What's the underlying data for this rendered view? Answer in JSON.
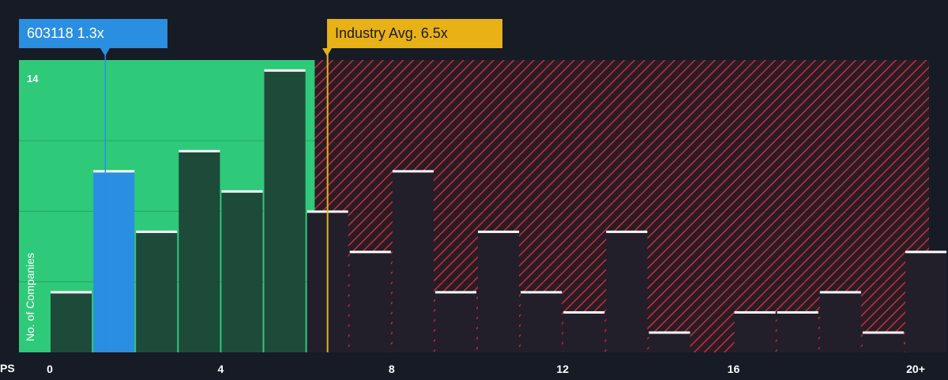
{
  "chart_data": {
    "type": "bar",
    "xlabel": "PS",
    "ylabel": "No. of Companies",
    "x_ticks": [
      "0",
      "4",
      "8",
      "12",
      "16",
      "20+"
    ],
    "y_ticks": [
      "14"
    ],
    "ylim": [
      0,
      14.5
    ],
    "xlim": [
      0,
      20.3
    ],
    "bin_width": 1,
    "bins_start": [
      0,
      1,
      2,
      3,
      4,
      5,
      6,
      7,
      8,
      9,
      10,
      11,
      12,
      13,
      14,
      15,
      16,
      17,
      18,
      19,
      20
    ],
    "values": [
      3,
      9,
      6,
      10,
      8,
      14,
      7,
      5,
      9,
      3,
      6,
      3,
      2,
      6,
      1,
      0,
      2,
      2,
      3,
      1,
      5
    ],
    "company": {
      "label": "603118 1.3x",
      "value": 1.3,
      "bin_index": 1
    },
    "industry_avg": {
      "label": "Industry Avg. 6.5x",
      "value": 6.5
    },
    "fair_range_max": 6.2,
    "colors": {
      "background": "#161b26",
      "fair_zone": "#2fc97a",
      "fair_bar": "#1e4a3a",
      "company_bar": "#2a8fe0",
      "over_zone": "#c0313e",
      "over_bar": "#221f2b",
      "bar_cap": "#ffffff",
      "industry": "#e8b116"
    }
  }
}
